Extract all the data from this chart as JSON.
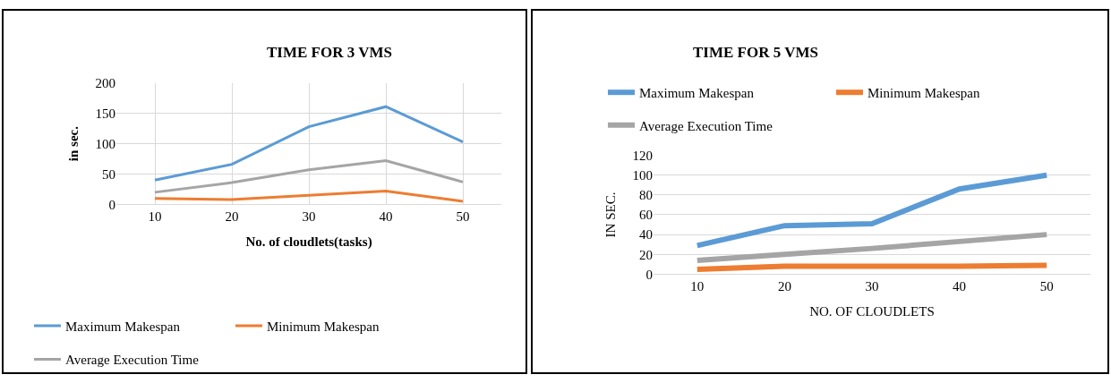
{
  "chart_data": [
    {
      "type": "line",
      "title": "TIME FOR 3 VMS",
      "xlabel": "No. of cloudlets(tasks)",
      "ylabel": "in sec.",
      "categories": [
        "10",
        "20",
        "30",
        "40",
        "50"
      ],
      "ylim": [
        0,
        200
      ],
      "yticks": [
        0,
        50,
        100,
        150,
        200
      ],
      "grid": true,
      "legend": "bottom",
      "marker": "none",
      "line_style": "solid",
      "series": [
        {
          "name": "Maximum Makespan",
          "color": "#5b9bd5",
          "values": [
            40,
            66,
            128,
            161,
            103
          ]
        },
        {
          "name": "Minimum Makespan",
          "color": "#ed7d31",
          "values": [
            10,
            8,
            15,
            22,
            5
          ]
        },
        {
          "name": "Average Execution Time",
          "color": "#a5a5a5",
          "values": [
            20,
            36,
            57,
            72,
            37
          ]
        }
      ]
    },
    {
      "type": "line",
      "title": "TIME FOR 5 VMS",
      "xlabel": "NO. OF CLOUDLETS",
      "ylabel": "IN SEC.",
      "categories": [
        "10",
        "20",
        "30",
        "40",
        "50"
      ],
      "ylim": [
        0,
        120
      ],
      "yticks": [
        0,
        20,
        40,
        60,
        80,
        100,
        120
      ],
      "grid": "y",
      "legend": "top",
      "marker": "none",
      "line_style": "solid",
      "series": [
        {
          "name": "Maximum Makespan",
          "color": "#5b9bd5",
          "values": [
            29,
            49,
            51,
            86,
            100
          ]
        },
        {
          "name": "Minimum Makespan",
          "color": "#ed7d31",
          "values": [
            5,
            8,
            8,
            8,
            9
          ]
        },
        {
          "name": "Average Execution Time",
          "color": "#a5a5a5",
          "values": [
            14,
            20,
            26,
            33,
            40
          ]
        }
      ]
    }
  ]
}
